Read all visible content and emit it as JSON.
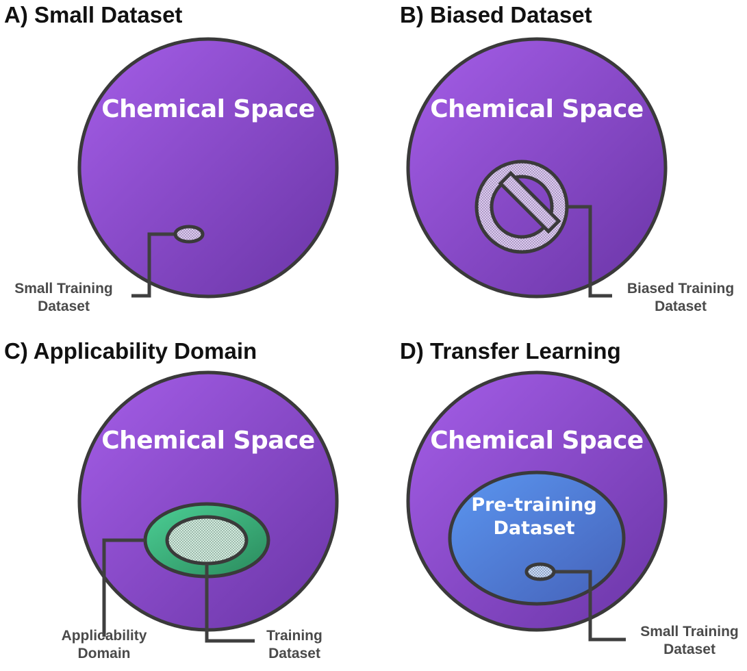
{
  "panels": {
    "a": {
      "title": "A) Small Dataset",
      "space_label": "Chemical Space",
      "callout": [
        "Small Training",
        "Dataset"
      ]
    },
    "b": {
      "title": "B) Biased Dataset",
      "space_label": "Chemical Space",
      "callout": [
        "Biased Training",
        "Dataset"
      ]
    },
    "c": {
      "title": "C) Applicability Domain",
      "space_label": "Chemical Space",
      "callout_domain": [
        "Applicability",
        "Domain"
      ],
      "callout_training": [
        "Training",
        "Dataset"
      ]
    },
    "d": {
      "title": "D) Transfer Learning",
      "space_label": "Chemical Space",
      "inner_label": [
        "Pre-training",
        "Dataset"
      ],
      "callout": [
        "Small Training",
        "Dataset"
      ]
    }
  },
  "colors": {
    "space_top": "#a55ee8",
    "space_bottom": "#6a35a6",
    "outline": "#3a3a3a",
    "dataset_fill": "#d9c8ee",
    "domain_green_top": "#4ccf95",
    "domain_green_bottom": "#2a8a5c",
    "training_fill": "#d3ecdf",
    "pretrain_top": "#5b96f0",
    "pretrain_bottom": "#4561b8",
    "small_blue_fill": "#c6d9f5"
  }
}
